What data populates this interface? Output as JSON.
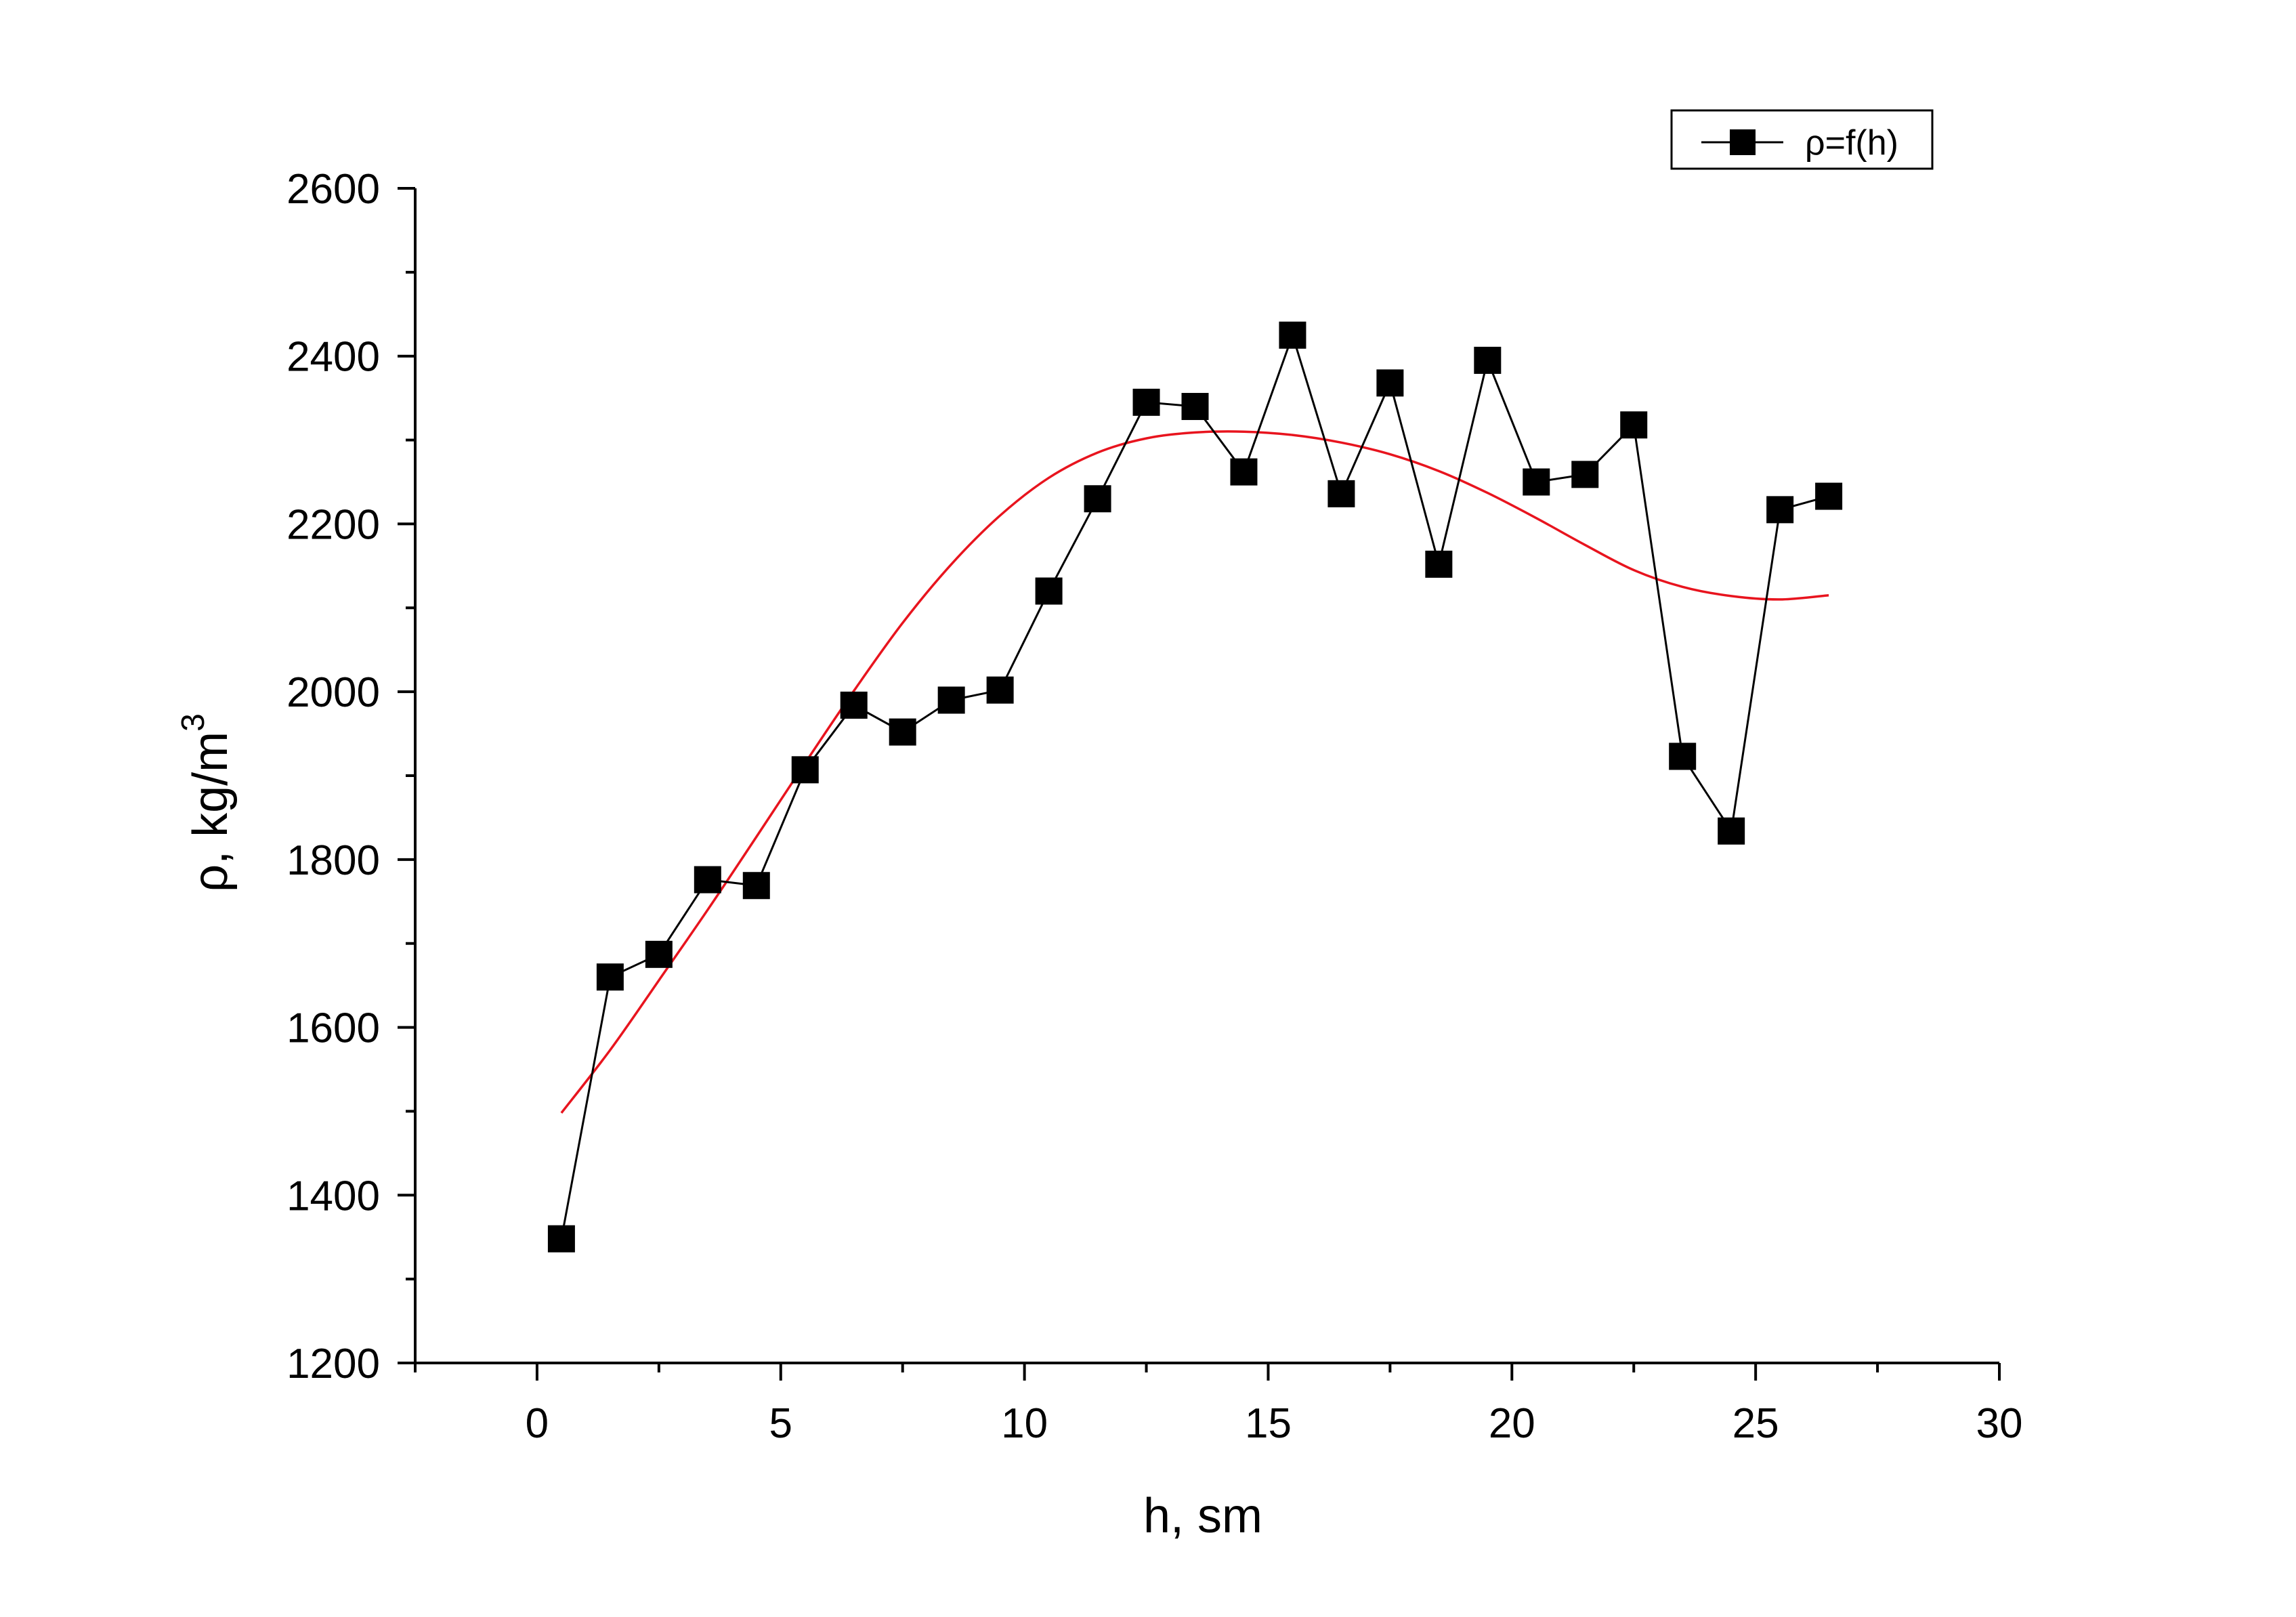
{
  "chart_data": {
    "type": "line",
    "title": "",
    "xlabel": "h, sm",
    "ylabel": {
      "text": "ρ, kg/m",
      "superscript": "3"
    },
    "xlim": [
      -2.5,
      30
    ],
    "ylim": [
      1200,
      2600
    ],
    "xticks": [
      0,
      5,
      10,
      15,
      20,
      25,
      30
    ],
    "yticks": [
      1200,
      1400,
      1600,
      1800,
      2000,
      2200,
      2400,
      2600
    ],
    "grid": false,
    "legend": {
      "position": "top-right",
      "entries": [
        "ρ=f(h)"
      ]
    },
    "series": [
      {
        "name": "ρ=f(h)",
        "kind": "line-markers",
        "marker": "square",
        "color": "#000000",
        "x": [
          0.5,
          1.5,
          2.5,
          3.5,
          4.5,
          5.5,
          6.5,
          7.5,
          8.5,
          9.5,
          10.5,
          11.5,
          12.5,
          13.5,
          14.5,
          15.5,
          16.5,
          17.5,
          18.5,
          19.5,
          20.5,
          21.5,
          22.5,
          23.5,
          24.5,
          25.5,
          26.5
        ],
        "y": [
          1348,
          1660,
          1687,
          1776,
          1769,
          1907,
          1984,
          1952,
          1990,
          2002,
          2120,
          2230,
          2345,
          2340,
          2262,
          2425,
          2236,
          2368,
          2152,
          2395,
          2250,
          2259,
          2318,
          1923,
          1834,
          2217,
          2233
        ]
      },
      {
        "name": "",
        "kind": "fit-curve",
        "color": "#e8141e",
        "x": [
          0.5,
          1.5,
          2.5,
          3.5,
          4.5,
          5.5,
          6.5,
          7.5,
          8.5,
          9.5,
          10.5,
          11.5,
          12.5,
          13.5,
          14.5,
          15.5,
          16.5,
          17.5,
          18.5,
          19.5,
          20.5,
          21.5,
          22.5,
          23.5,
          24.5,
          25.5,
          26.5
        ],
        "y": [
          1498,
          1573,
          1656,
          1740,
          1827,
          1915,
          2001,
          2082,
          2152,
          2210,
          2255,
          2285,
          2302,
          2309,
          2310,
          2306,
          2297,
          2283,
          2263,
          2237,
          2207,
          2175,
          2145,
          2125,
          2114,
          2110,
          2115
        ]
      }
    ]
  }
}
